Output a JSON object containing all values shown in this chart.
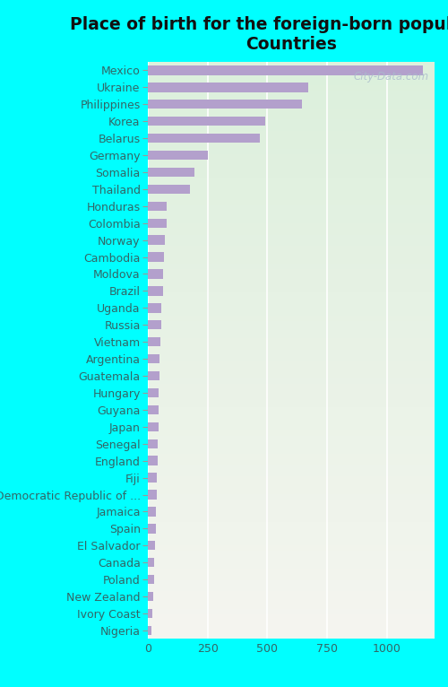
{
  "title": "Place of birth for the foreign-born population -\nCountries",
  "countries": [
    "Mexico",
    "Ukraine",
    "Philippines",
    "Korea",
    "Belarus",
    "Germany",
    "Somalia",
    "Thailand",
    "Honduras",
    "Colombia",
    "Norway",
    "Cambodia",
    "Moldova",
    "Brazil",
    "Uganda",
    "Russia",
    "Vietnam",
    "Argentina",
    "Guatemala",
    "Hungary",
    "Guyana",
    "Japan",
    "Senegal",
    "England",
    "Fiji",
    "Democratic Republic of ...",
    "Jamaica",
    "Spain",
    "El Salvador",
    "Canada",
    "Poland",
    "New Zealand",
    "Ivory Coast",
    "Nigeria"
  ],
  "values": [
    1150,
    670,
    645,
    490,
    470,
    250,
    195,
    175,
    80,
    78,
    72,
    68,
    65,
    62,
    58,
    55,
    52,
    50,
    48,
    46,
    45,
    44,
    42,
    40,
    38,
    36,
    34,
    32,
    30,
    28,
    25,
    22,
    18,
    15
  ],
  "bar_color": "#b3a0cc",
  "bg_color_top": "#f5f5f0",
  "bg_color_bottom": "#e0f0e0",
  "outer_background": "#00ffff",
  "title_color": "#111111",
  "label_color": "#336666",
  "tick_label_color": "#336666",
  "watermark": "City-Data.com",
  "xlim": [
    0,
    1200
  ],
  "xticks": [
    0,
    250,
    500,
    750,
    1000
  ],
  "title_fontsize": 13.5,
  "label_fontsize": 9
}
